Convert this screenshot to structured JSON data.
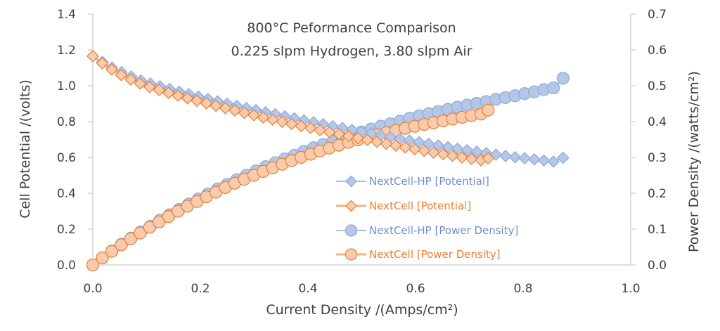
{
  "chart_data": {
    "type": "line",
    "title": "800°C Peformance Comparison",
    "subtitle": "0.225 slpm Hydrogen, 3.80 slpm Air",
    "xlabel": "Current Density /(Amps/cm²)",
    "ylabel": "Cell Potential /(volts)",
    "y2label": "Power Density /(watts/cm²)",
    "xlim": [
      0.0,
      1.0
    ],
    "ylim": [
      0.0,
      1.4
    ],
    "y2lim": [
      0.0,
      0.7
    ],
    "x_ticks": [
      "0.0",
      "0.2",
      "0.4",
      "0.6",
      "0.8",
      "1.0"
    ],
    "y_ticks": [
      "0.0",
      "0.2",
      "0.4",
      "0.6",
      "0.8",
      "1.0",
      "1.2",
      "1.4"
    ],
    "y2_ticks": [
      "0.0",
      "0.1",
      "0.2",
      "0.3",
      "0.4",
      "0.5",
      "0.6",
      "0.7"
    ],
    "grid": false,
    "legend_position": "center-right",
    "colors": {
      "hp_line": "#8EA9DB",
      "hp_fill": "#B4C7E7",
      "nc_line": "#F4B183",
      "nc_fill": "#F8CBAD",
      "nc_edge": "#ED7D31"
    },
    "series": [
      {
        "name": "NextCell-HP [Potential]",
        "axis": "left",
        "marker": "diamond",
        "x": [
          0.0,
          0.0178,
          0.0357,
          0.0535,
          0.0714,
          0.0892,
          0.1071,
          0.1249,
          0.1427,
          0.1606,
          0.1784,
          0.1963,
          0.2141,
          0.232,
          0.2498,
          0.2676,
          0.2855,
          0.3033,
          0.3212,
          0.339,
          0.3569,
          0.3747,
          0.3925,
          0.4104,
          0.4282,
          0.4461,
          0.4639,
          0.4818,
          0.4996,
          0.5174,
          0.5353,
          0.5531,
          0.571,
          0.5888,
          0.6067,
          0.6245,
          0.6423,
          0.6602,
          0.678,
          0.6959,
          0.7137,
          0.7316,
          0.7494,
          0.7672,
          0.7851,
          0.8029,
          0.8208,
          0.8386,
          0.8565,
          0.8743
        ],
        "y": [
          1.165,
          1.133,
          1.101,
          1.076,
          1.052,
          1.03,
          1.012,
          0.997,
          0.982,
          0.967,
          0.953,
          0.939,
          0.926,
          0.913,
          0.9,
          0.888,
          0.876,
          0.864,
          0.852,
          0.841,
          0.829,
          0.818,
          0.807,
          0.796,
          0.785,
          0.774,
          0.764,
          0.753,
          0.743,
          0.733,
          0.723,
          0.713,
          0.703,
          0.694,
          0.685,
          0.676,
          0.667,
          0.658,
          0.649,
          0.64,
          0.632,
          0.624,
          0.616,
          0.608,
          0.601,
          0.595,
          0.589,
          0.583,
          0.577,
          0.598
        ]
      },
      {
        "name": "NextCell [Potential]",
        "axis": "left",
        "marker": "diamond",
        "x": [
          0.0,
          0.0176,
          0.0352,
          0.0528,
          0.0704,
          0.088,
          0.1056,
          0.1232,
          0.1408,
          0.1584,
          0.176,
          0.1936,
          0.2112,
          0.2288,
          0.2464,
          0.264,
          0.2816,
          0.2992,
          0.3168,
          0.3344,
          0.352,
          0.3696,
          0.3872,
          0.4048,
          0.4224,
          0.44,
          0.4576,
          0.4752,
          0.4928,
          0.5104,
          0.528,
          0.5456,
          0.5632,
          0.5808,
          0.5984,
          0.616,
          0.6336,
          0.6512,
          0.6688,
          0.6864,
          0.704,
          0.7216,
          0.735
        ],
        "y": [
          1.165,
          1.125,
          1.09,
          1.06,
          1.035,
          1.012,
          0.993,
          0.976,
          0.96,
          0.945,
          0.93,
          0.916,
          0.902,
          0.888,
          0.875,
          0.862,
          0.849,
          0.836,
          0.823,
          0.811,
          0.799,
          0.787,
          0.775,
          0.764,
          0.752,
          0.741,
          0.73,
          0.719,
          0.708,
          0.697,
          0.687,
          0.676,
          0.666,
          0.656,
          0.646,
          0.637,
          0.627,
          0.618,
          0.609,
          0.6,
          0.592,
          0.584,
          0.595
        ]
      },
      {
        "name": "NextCell-HP [Power Density]",
        "axis": "right",
        "marker": "circle",
        "x": [
          0.0,
          0.0178,
          0.0357,
          0.0535,
          0.0714,
          0.0892,
          0.1071,
          0.1249,
          0.1427,
          0.1606,
          0.1784,
          0.1963,
          0.2141,
          0.232,
          0.2498,
          0.2676,
          0.2855,
          0.3033,
          0.3212,
          0.339,
          0.3569,
          0.3747,
          0.3925,
          0.4104,
          0.4282,
          0.4461,
          0.4639,
          0.4818,
          0.4996,
          0.5174,
          0.5353,
          0.5531,
          0.571,
          0.5888,
          0.6067,
          0.6245,
          0.6423,
          0.6602,
          0.678,
          0.6959,
          0.7137,
          0.7316,
          0.7494,
          0.7672,
          0.7851,
          0.8029,
          0.8208,
          0.8386,
          0.8565,
          0.8743
        ],
        "y": [
          0.0,
          0.02,
          0.039,
          0.058,
          0.075,
          0.092,
          0.108,
          0.125,
          0.14,
          0.155,
          0.17,
          0.184,
          0.198,
          0.212,
          0.225,
          0.238,
          0.25,
          0.262,
          0.274,
          0.285,
          0.296,
          0.306,
          0.317,
          0.327,
          0.336,
          0.345,
          0.354,
          0.363,
          0.371,
          0.379,
          0.387,
          0.394,
          0.401,
          0.409,
          0.416,
          0.422,
          0.428,
          0.434,
          0.44,
          0.446,
          0.451,
          0.456,
          0.462,
          0.467,
          0.472,
          0.478,
          0.483,
          0.489,
          0.494,
          0.521
        ]
      },
      {
        "name": "NextCell [Power Density]",
        "axis": "right",
        "marker": "circle",
        "x": [
          0.0,
          0.0176,
          0.0352,
          0.0528,
          0.0704,
          0.088,
          0.1056,
          0.1232,
          0.1408,
          0.1584,
          0.176,
          0.1936,
          0.2112,
          0.2288,
          0.2464,
          0.264,
          0.2816,
          0.2992,
          0.3168,
          0.3344,
          0.352,
          0.3696,
          0.3872,
          0.4048,
          0.4224,
          0.44,
          0.4576,
          0.4752,
          0.4928,
          0.5104,
          0.528,
          0.5456,
          0.5632,
          0.5808,
          0.5984,
          0.616,
          0.6336,
          0.6512,
          0.6688,
          0.6864,
          0.704,
          0.7216,
          0.735
        ],
        "y": [
          0.0,
          0.02,
          0.038,
          0.056,
          0.073,
          0.089,
          0.105,
          0.12,
          0.135,
          0.15,
          0.164,
          0.177,
          0.19,
          0.203,
          0.216,
          0.228,
          0.239,
          0.25,
          0.261,
          0.271,
          0.281,
          0.291,
          0.3,
          0.309,
          0.318,
          0.326,
          0.334,
          0.342,
          0.349,
          0.356,
          0.363,
          0.369,
          0.375,
          0.381,
          0.387,
          0.392,
          0.397,
          0.402,
          0.407,
          0.412,
          0.417,
          0.421,
          0.432
        ]
      }
    ]
  }
}
